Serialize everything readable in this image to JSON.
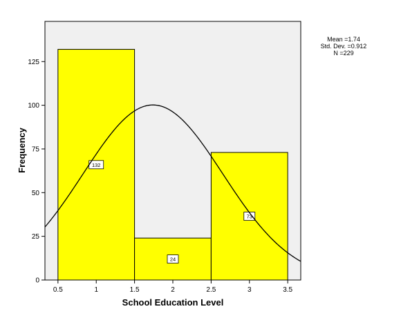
{
  "chart_data": {
    "type": "bar",
    "subtype": "histogram",
    "xlabel": "School Education Level",
    "ylabel": "Frequency",
    "xlim": [
      0.33,
      3.67
    ],
    "ylim": [
      0,
      148
    ],
    "x_ticks": [
      "0.5",
      "1",
      "1.5",
      "2",
      "2.5",
      "3",
      "3.5"
    ],
    "y_ticks": [
      "0",
      "25",
      "50",
      "75",
      "100",
      "125"
    ],
    "bins": [
      {
        "start": 0.5,
        "end": 1.5,
        "value": 132,
        "label": "132"
      },
      {
        "start": 1.5,
        "end": 2.5,
        "value": 24,
        "label": "24"
      },
      {
        "start": 2.5,
        "end": 3.5,
        "value": 73,
        "label": "73"
      }
    ],
    "normal_curve": {
      "mean": 1.74,
      "sd": 0.912,
      "n": 229,
      "bin_width": 1
    },
    "stats": {
      "mean": "Mean =1.74",
      "sd": "Std. Dev. =0.912",
      "n": "N =229"
    },
    "colors": {
      "plot_bg": "#f0f0f0",
      "bar_fill": "#ffff00",
      "bar_stroke": "#000000",
      "curve": "#000000"
    },
    "grid": false
  }
}
